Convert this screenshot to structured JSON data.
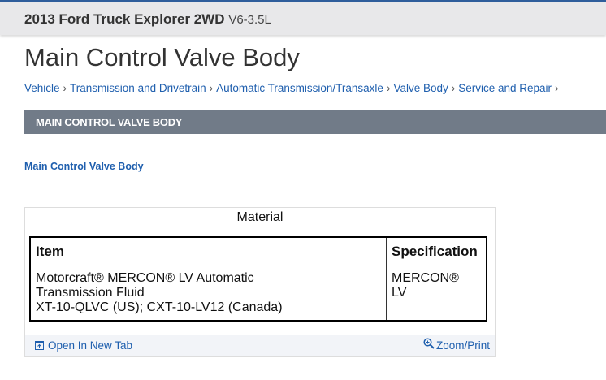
{
  "vehicle": {
    "title": "2013 Ford Truck Explorer 2WD",
    "engine": "V6-3.5L"
  },
  "page_title": "Main Control Valve Body",
  "breadcrumb": [
    "Vehicle",
    "Transmission and Drivetrain",
    "Automatic Transmission/Transaxle",
    "Valve Body",
    "Service and Repair"
  ],
  "section_header": "MAIN CONTROL VALVE BODY",
  "sub_link": "Main Control Valve Body",
  "material_table": {
    "caption": "Material",
    "headers": [
      "Item",
      "Specification"
    ],
    "rows": [
      {
        "item_lines": [
          "Motorcraft® MERCON® LV Automatic",
          "Transmission Fluid",
          "XT-10-QLVC (US); CXT-10-LV12 (Canada)"
        ],
        "spec_lines": [
          "MERCON®",
          "LV"
        ]
      }
    ],
    "open_new_tab": "Open In New Tab",
    "zoom_print": "Zoom/Print"
  },
  "colors": {
    "link": "#1f5fae",
    "section_bg": "#717b88",
    "accent": "#2f5e9c"
  }
}
